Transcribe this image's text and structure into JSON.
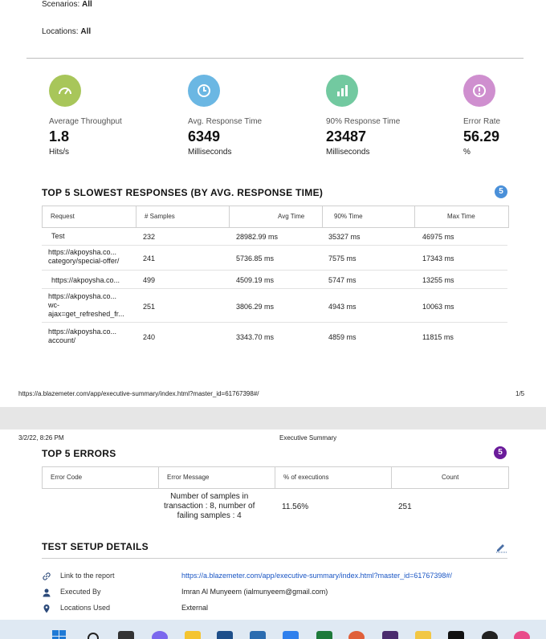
{
  "filters": {
    "scenarios_label": "Scenarios:",
    "scenarios_value": "All",
    "locations_label": "Locations:",
    "locations_value": "All"
  },
  "metrics": [
    {
      "label": "Average Throughput",
      "value": "1.8",
      "unit": "Hits/s",
      "color": "#a8c65a",
      "icon": "gauge-icon"
    },
    {
      "label": "Avg. Response Time",
      "value": "6349",
      "unit": "Milliseconds",
      "color": "#6bb7e3",
      "icon": "clock-icon"
    },
    {
      "label": "90% Response Time",
      "value": "23487",
      "unit": "Milliseconds",
      "color": "#72c9a0",
      "icon": "bar-chart-icon"
    },
    {
      "label": "Error Rate",
      "value": "56.29",
      "unit": "%",
      "color": "#cf8fcf",
      "icon": "alert-icon"
    }
  ],
  "slowest": {
    "title": "TOP 5 SLOWEST RESPONSES (BY AVG. RESPONSE TIME)",
    "badge": "5",
    "badge_color": "#4a90d9",
    "columns": [
      "Request",
      "# Samples",
      "Avg Time",
      "90% Time",
      "Max Time"
    ],
    "rows": [
      {
        "request": "Test",
        "samples": "232",
        "avg": "28982.99 ms",
        "p90": "35327 ms",
        "max": "46975 ms"
      },
      {
        "request": "https://akpoysha.co...\ncategory/special-offer/",
        "samples": "241",
        "avg": "5736.85 ms",
        "p90": "7575 ms",
        "max": "17343 ms"
      },
      {
        "request": "https://akpoysha.co...",
        "samples": "499",
        "avg": "4509.19 ms",
        "p90": "5747 ms",
        "max": "13255 ms"
      },
      {
        "request": "https://akpoysha.co...\nwc-\najax=get_refreshed_fr...",
        "samples": "251",
        "avg": "3806.29 ms",
        "p90": "4943 ms",
        "max": "10063 ms"
      },
      {
        "request": "https://akpoysha.co...\naccount/",
        "samples": "240",
        "avg": "3343.70 ms",
        "p90": "4859 ms",
        "max": "11815 ms"
      }
    ]
  },
  "footer": {
    "url": "https://a.blazemeter.com/app/executive-summary/index.html?master_id=61767398#/",
    "page": "1/5"
  },
  "page2_header": {
    "date": "3/2/22, 8:26 PM",
    "title": "Executive Summary"
  },
  "errors": {
    "title": "TOP 5 ERRORS",
    "badge": "5",
    "badge_color": "#6a1b9a",
    "columns": [
      "Error Code",
      "Error Message",
      "% of executions",
      "Count"
    ],
    "rows": [
      {
        "code": "",
        "message": "Number of samples in\ntransaction : 8, number of\nfailing samples : 4",
        "percent": "11.56%",
        "count": "251"
      }
    ]
  },
  "setup": {
    "title": "TEST SETUP DETAILS",
    "items": [
      {
        "label": "Link to the report",
        "value": "https://a.blazemeter.com/app/executive-summary/index.html?master_id=61767398#/",
        "icon": "link-icon",
        "is_link": true
      },
      {
        "label": "Executed By",
        "value": "Imran Al Munyeem (ialmunyeem@gmail.com)",
        "icon": "user-icon",
        "is_link": false
      },
      {
        "label": "Locations Used",
        "value": "External",
        "icon": "location-pin-icon",
        "is_link": false
      }
    ]
  }
}
